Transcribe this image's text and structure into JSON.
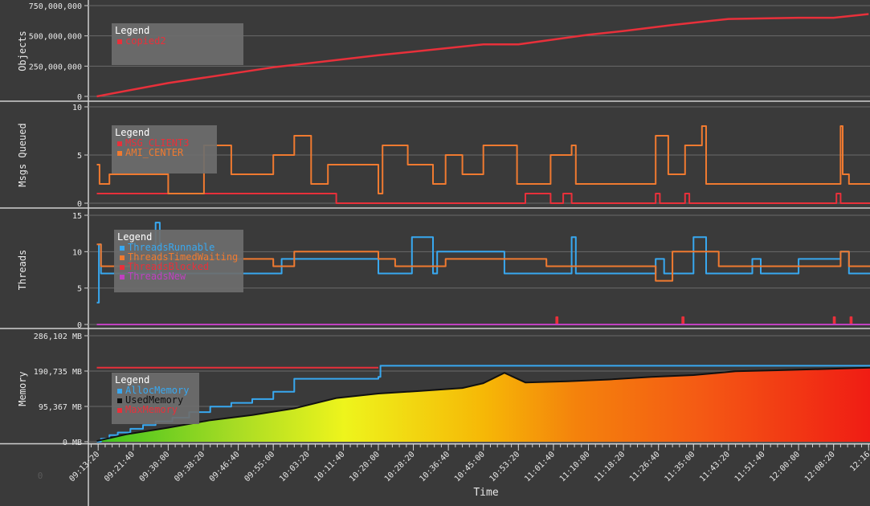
{
  "colors": {
    "background": "#3a3a3a",
    "grid": "#6a6a6a",
    "axis": "#d0d0d0",
    "legend_bg": "#6e6e6e",
    "red": "#e8303a",
    "orange": "#f07a30",
    "blue": "#38a8f0",
    "magenta": "#c040c0",
    "black": "#111111"
  },
  "x_axis": {
    "label": "Time",
    "tick_labels": [
      "09:13:20",
      "09:21:40",
      "09:30:00",
      "09:38:20",
      "09:46:40",
      "09:55:00",
      "10:03:20",
      "10:11:40",
      "10:20:00",
      "10:28:20",
      "10:36:40",
      "10:45:00",
      "10:53:20",
      "11:01:40",
      "11:10:00",
      "11:18:20",
      "11:26:40",
      "11:35:00",
      "11:43:20",
      "11:51:40",
      "12:00:00",
      "12:08:20",
      "12:16"
    ],
    "range": [
      "09:11:00",
      "12:17:00"
    ]
  },
  "corner_label": "0",
  "chart_data": [
    {
      "type": "line",
      "ylabel": "Objects",
      "ylim": [
        0,
        750000000
      ],
      "y_ticks": [
        0,
        250000000,
        500000000,
        750000000
      ],
      "y_tick_labels": [
        "0",
        "250,000,000",
        "500,000,000",
        "750,000,000"
      ],
      "legend": {
        "title": "Legend",
        "items": [
          {
            "name": "copied2",
            "color": "#e8303a"
          }
        ]
      },
      "series": [
        {
          "name": "copied2",
          "color": "#e8303a",
          "x": [
            "09:13:00",
            "09:30:00",
            "09:55:00",
            "10:20:00",
            "10:45:00",
            "10:53:20",
            "11:10:00",
            "11:18:20",
            "11:30:00",
            "11:43:20",
            "12:00:00",
            "12:08:20",
            "12:16:40"
          ],
          "values": [
            0,
            110000000,
            240000000,
            340000000,
            430000000,
            430000000,
            510000000,
            540000000,
            590000000,
            640000000,
            650000000,
            650000000,
            680000000
          ]
        }
      ]
    },
    {
      "type": "line",
      "ylabel": "Msgs Queued",
      "ylim": [
        0,
        10
      ],
      "y_ticks": [
        0,
        5,
        10
      ],
      "y_tick_labels": [
        "0",
        "5",
        "10"
      ],
      "legend": {
        "title": "Legend",
        "items": [
          {
            "name": "MSG_CLIENT3",
            "color": "#e8303a"
          },
          {
            "name": "AMI_CENTER",
            "color": "#f07a30"
          }
        ]
      },
      "series": [
        {
          "name": "MSG_CLIENT3",
          "color": "#e8303a",
          "x": [
            "09:13:00",
            "10:10:00",
            "10:20:00",
            "10:55:00",
            "11:01:00",
            "11:04:00",
            "11:06:00",
            "11:26:00",
            "11:27:00",
            "11:33:00",
            "11:34:00",
            "12:09:00",
            "12:10:00",
            "12:17:00"
          ],
          "values": [
            1,
            0,
            0,
            1,
            0,
            1,
            0,
            1,
            0,
            1,
            0,
            1,
            0,
            0
          ]
        },
        {
          "name": "AMI_CENTER",
          "color": "#f07a30",
          "x": [
            "09:13:00",
            "09:13:40",
            "09:16:00",
            "09:30:00",
            "09:38:30",
            "09:45:00",
            "09:55:00",
            "10:00:00",
            "10:04:00",
            "10:08:00",
            "10:20:00",
            "10:21:00",
            "10:27:00",
            "10:33:00",
            "10:36:00",
            "10:40:00",
            "10:45:00",
            "10:53:00",
            "10:56:00",
            "11:01:00",
            "11:06:00",
            "11:07:00",
            "11:10:00",
            "11:26:00",
            "11:29:00",
            "11:33:00",
            "11:37:00",
            "11:38:00",
            "12:10:00",
            "12:10:30",
            "12:12:00",
            "12:17:00"
          ],
          "values": [
            4,
            2,
            3,
            1,
            6,
            3,
            5,
            7,
            2,
            4,
            1,
            6,
            4,
            2,
            5,
            3,
            6,
            2,
            2,
            5,
            6,
            2,
            2,
            7,
            3,
            6,
            8,
            2,
            8,
            3,
            2,
            2
          ]
        }
      ]
    },
    {
      "type": "line",
      "ylabel": "Threads",
      "ylim": [
        0,
        15
      ],
      "y_ticks": [
        0,
        5,
        10,
        15
      ],
      "y_tick_labels": [
        "0",
        "5",
        "10",
        "15"
      ],
      "legend": {
        "title": "Legend",
        "items": [
          {
            "name": "ThreadsRunnable",
            "color": "#38a8f0"
          },
          {
            "name": "ThreadsTimedWaiting",
            "color": "#f07a30"
          },
          {
            "name": "ThreadsBlocked",
            "color": "#e8303a"
          },
          {
            "name": "ThreadsNew",
            "color": "#c040c0"
          }
        ]
      },
      "series": [
        {
          "name": "ThreadsRunnable",
          "color": "#38a8f0",
          "x": [
            "09:13:00",
            "09:13:30",
            "09:14:00",
            "09:21:00",
            "09:27:00",
            "09:28:00",
            "09:55:00",
            "09:57:00",
            "10:20:00",
            "10:28:00",
            "10:33:00",
            "10:34:00",
            "10:50:00",
            "11:06:00",
            "11:07:00",
            "11:18:00",
            "11:26:00",
            "11:28:00",
            "11:35:00",
            "11:38:00",
            "11:49:00",
            "11:51:00",
            "11:58:00",
            "12:00:00",
            "12:10:00",
            "12:12:00",
            "12:17:00"
          ],
          "values": [
            3,
            11,
            7,
            7,
            14,
            7,
            7,
            9,
            7,
            12,
            7,
            10,
            7,
            12,
            7,
            7,
            9,
            7,
            12,
            7,
            9,
            7,
            7,
            9,
            10,
            7,
            7
          ]
        },
        {
          "name": "ThreadsTimedWaiting",
          "color": "#f07a30",
          "x": [
            "09:13:00",
            "09:14:00",
            "09:16:00",
            "09:21:00",
            "09:30:00",
            "09:55:00",
            "10:00:00",
            "10:20:00",
            "10:24:00",
            "10:36:00",
            "10:45:00",
            "11:00:00",
            "11:05:00",
            "11:26:00",
            "11:30:00",
            "11:41:00",
            "11:56:00",
            "12:10:00",
            "12:12:00",
            "12:17:00"
          ],
          "values": [
            11,
            8,
            8,
            9,
            9,
            8,
            10,
            9,
            8,
            9,
            9,
            8,
            8,
            6,
            10,
            8,
            8,
            10,
            8,
            8
          ]
        },
        {
          "name": "ThreadsBlocked",
          "color": "#e8303a",
          "x": [
            "09:13:00",
            "11:02:00",
            "11:02:20",
            "11:02:40",
            "11:32:00",
            "11:32:20",
            "11:32:40",
            "12:08:00",
            "12:08:20",
            "12:08:40",
            "12:12:00",
            "12:12:20",
            "12:12:40",
            "12:17:00"
          ],
          "values": [
            0,
            0,
            1,
            0,
            0,
            1,
            0,
            0,
            1,
            0,
            0,
            1,
            0,
            0
          ]
        },
        {
          "name": "ThreadsNew",
          "color": "#c040c0",
          "x": [
            "09:13:00",
            "12:17:00"
          ],
          "values": [
            0,
            0
          ]
        }
      ]
    },
    {
      "type": "area",
      "ylabel": "Memory",
      "ylim": [
        0,
        286102
      ],
      "y_ticks": [
        0,
        95367,
        190735,
        286102
      ],
      "y_tick_labels": [
        "0 MB",
        "95,367 MB",
        "190,735 MB",
        "286,102 MB"
      ],
      "legend": {
        "title": "Legend",
        "items": [
          {
            "name": "AllocMemory",
            "color": "#38a8f0"
          },
          {
            "name": "UsedMemory",
            "color": "#111111"
          },
          {
            "name": "MaxMemory",
            "color": "#e8303a"
          }
        ]
      },
      "series": [
        {
          "name": "AllocMemory",
          "color": "#38a8f0",
          "step": true,
          "x": [
            "09:13:00",
            "09:14:00",
            "09:16:00",
            "09:18:00",
            "09:21:00",
            "09:24:00",
            "09:27:00",
            "09:31:00",
            "09:35:00",
            "09:40:00",
            "09:45:00",
            "09:50:00",
            "09:55:00",
            "10:00:00",
            "10:20:00",
            "10:20:30",
            "12:17:00"
          ],
          "values": [
            0,
            8000,
            18000,
            25000,
            35000,
            45000,
            55000,
            65000,
            80000,
            95000,
            105000,
            115000,
            135000,
            170000,
            175000,
            205000,
            205000
          ]
        },
        {
          "name": "UsedMemory",
          "color": "#111111",
          "x": [
            "09:13:00",
            "09:20:00",
            "09:30:00",
            "09:40:00",
            "09:50:00",
            "10:00:00",
            "10:10:00",
            "10:20:00",
            "10:30:00",
            "10:40:00",
            "10:45:00",
            "10:50:00",
            "10:55:00",
            "11:05:00",
            "11:15:00",
            "11:25:00",
            "11:35:00",
            "11:45:00",
            "11:55:00",
            "12:05:00",
            "12:17:00"
          ],
          "values": [
            2000,
            20000,
            38000,
            58000,
            72000,
            90000,
            118000,
            130000,
            137000,
            145000,
            158000,
            186000,
            160000,
            163000,
            168000,
            175000,
            180000,
            190000,
            193000,
            196000,
            200000
          ]
        },
        {
          "name": "MaxMemory",
          "color": "#e8303a",
          "x": [
            "09:13:00",
            "10:20:00"
          ],
          "values": [
            200000,
            200000
          ]
        }
      ]
    }
  ]
}
